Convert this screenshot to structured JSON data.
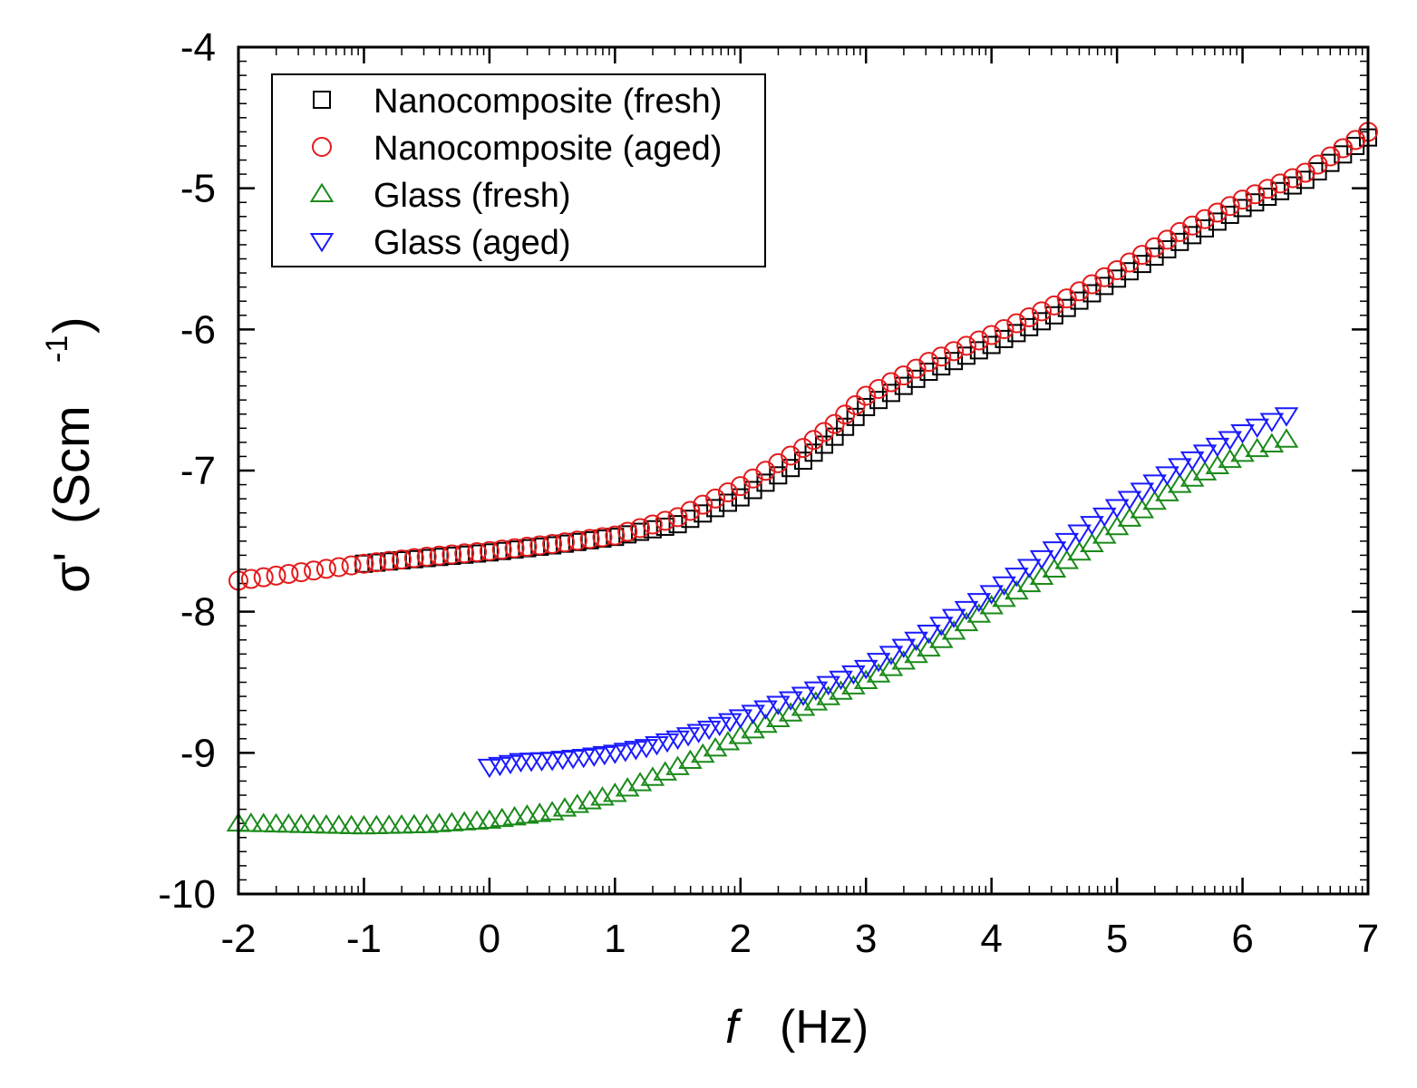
{
  "chart_data": {
    "type": "scatter",
    "title": "",
    "xlabel": "f",
    "xlabel_unit": "(Hz)",
    "ylabel": "σ'",
    "ylabel_unit": "(Scm",
    "ylabel_exp": "-1",
    "ylabel_close": ")",
    "xlim": [
      -2,
      7
    ],
    "ylim": [
      -10,
      -4
    ],
    "x_ticks": [
      -2,
      -1,
      0,
      1,
      2,
      3,
      4,
      5,
      6,
      7
    ],
    "y_ticks": [
      -10,
      -9,
      -8,
      -7,
      -6,
      -5,
      -4
    ],
    "legend_position": "top-left",
    "series": [
      {
        "name": "Nanocomposite (fresh)",
        "color": "#000000",
        "marker": "square",
        "x": [
          -1.0,
          -0.5,
          0.0,
          0.5,
          1.0,
          1.5,
          2.0,
          2.5,
          2.75,
          3.0,
          3.5,
          4.0,
          4.5,
          5.0,
          5.5,
          6.0,
          6.5,
          7.0
        ],
        "y": [
          -7.66,
          -7.62,
          -7.58,
          -7.53,
          -7.47,
          -7.38,
          -7.19,
          -6.93,
          -6.76,
          -6.55,
          -6.3,
          -6.11,
          -5.9,
          -5.64,
          -5.38,
          -5.14,
          -4.94,
          -4.64
        ]
      },
      {
        "name": "Nanocomposite (aged)",
        "color": "#e31a1c",
        "marker": "circle",
        "x": [
          -2.0,
          -1.5,
          -1.0,
          -0.5,
          0.0,
          0.5,
          1.0,
          1.5,
          2.0,
          2.5,
          2.75,
          3.0,
          3.5,
          4.0,
          4.5,
          5.0,
          5.5,
          6.0,
          6.5,
          7.0
        ],
        "y": [
          -7.78,
          -7.72,
          -7.66,
          -7.61,
          -7.57,
          -7.52,
          -7.46,
          -7.33,
          -7.11,
          -6.84,
          -6.67,
          -6.47,
          -6.23,
          -6.04,
          -5.83,
          -5.58,
          -5.31,
          -5.08,
          -4.89,
          -4.6
        ]
      },
      {
        "name": "Glass (fresh)",
        "color": "#1a8a1a",
        "marker": "triangle-up",
        "x": [
          -2.0,
          -1.5,
          -1.0,
          -0.5,
          0.0,
          0.5,
          1.0,
          1.5,
          2.0,
          2.5,
          3.0,
          3.5,
          4.0,
          4.5,
          5.0,
          5.5,
          6.0,
          6.35
        ],
        "y": [
          -9.5,
          -9.51,
          -9.52,
          -9.51,
          -9.48,
          -9.42,
          -9.29,
          -9.1,
          -8.88,
          -8.68,
          -8.49,
          -8.26,
          -7.96,
          -7.7,
          -7.4,
          -7.1,
          -6.88,
          -6.78
        ]
      },
      {
        "name": "Glass (aged)",
        "color": "#1a1aff",
        "marker": "triangle-down",
        "x": [
          0.0,
          0.25,
          0.5,
          0.75,
          1.0,
          1.25,
          1.5,
          1.75,
          2.0,
          2.5,
          3.0,
          3.5,
          4.0,
          4.5,
          5.0,
          5.5,
          6.0,
          6.35
        ],
        "y": [
          -9.1,
          -9.06,
          -9.05,
          -9.03,
          -9.0,
          -8.96,
          -8.9,
          -8.83,
          -8.75,
          -8.59,
          -8.4,
          -8.15,
          -7.87,
          -7.56,
          -7.26,
          -6.97,
          -6.73,
          -6.61
        ]
      }
    ]
  }
}
